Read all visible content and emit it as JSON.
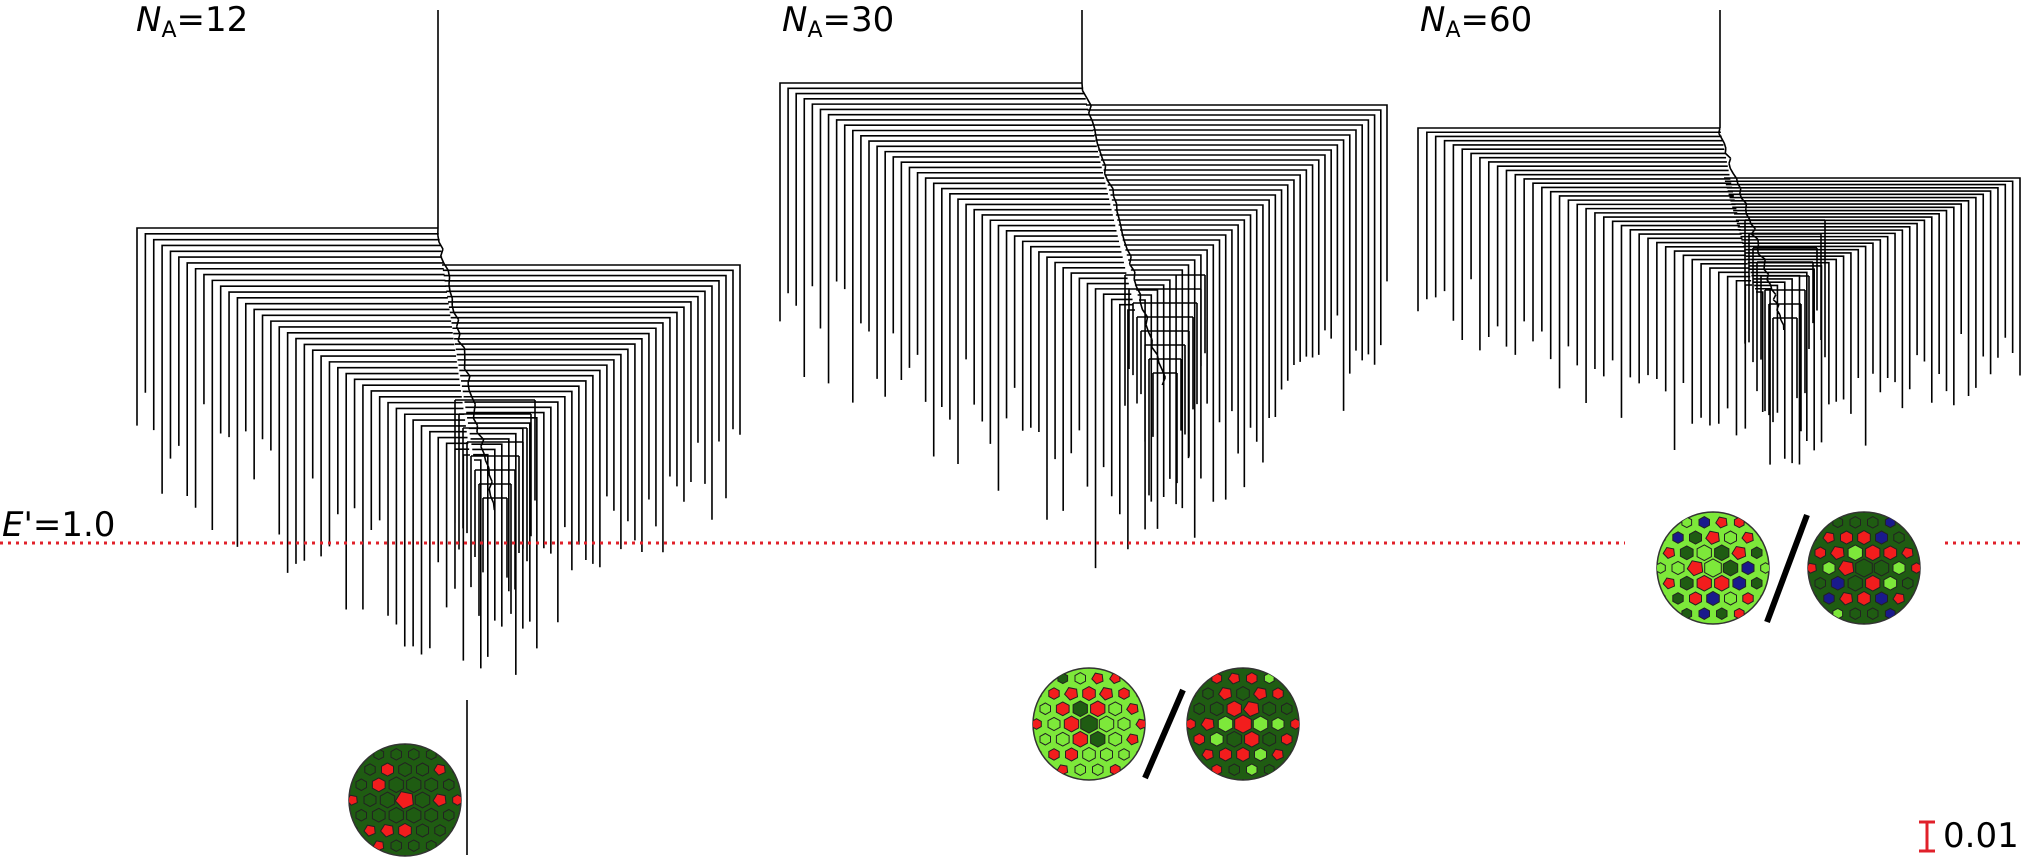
{
  "panels": [
    {
      "id": "na12",
      "prefix": "N",
      "sub": "A",
      "value": "=12"
    },
    {
      "id": "na30",
      "prefix": "N",
      "sub": "A",
      "value": "=30"
    },
    {
      "id": "na60",
      "prefix": "N",
      "sub": "A",
      "value": "=60"
    }
  ],
  "threshold": {
    "symbol": "E",
    "rest": "'=1.0",
    "value": 1.0,
    "color": "#e0202a"
  },
  "scale_bar": {
    "label": "0.01",
    "value": 0.01,
    "color": "#e0202a"
  },
  "colors": {
    "dark_green": "#1f5c12",
    "light_green": "#7de83a",
    "red": "#f21d1d",
    "blue": "#1a1a8c",
    "tree_line": "#000000"
  }
}
